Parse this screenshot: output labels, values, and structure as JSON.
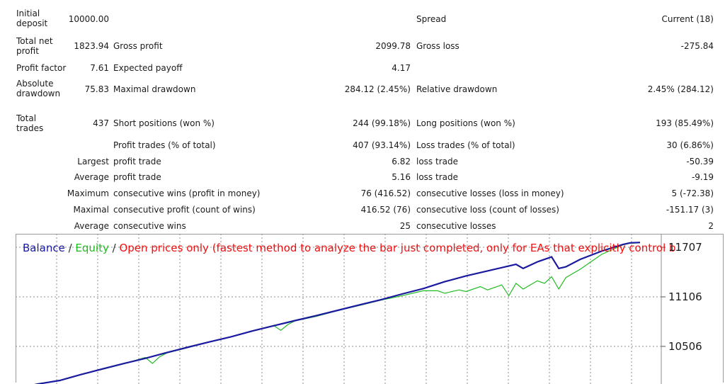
{
  "report": {
    "initial_deposit": {
      "label": "Initial deposit",
      "value": "10000.00"
    },
    "spread": {
      "label": "Spread",
      "value": "Current (18)"
    },
    "total_net_profit": {
      "label": "Total net profit",
      "value": "1823.94"
    },
    "gross_profit": {
      "label": "Gross profit",
      "value": "2099.78"
    },
    "gross_loss": {
      "label": "Gross loss",
      "value": "-275.84"
    },
    "profit_factor": {
      "label": "Profit factor",
      "value": "7.61"
    },
    "expected_payoff": {
      "label": "Expected payoff",
      "value": "4.17"
    },
    "absolute_drawdown": {
      "label": "Absolute drawdown",
      "value": "75.83"
    },
    "maximal_drawdown": {
      "label": "Maximal drawdown",
      "value": "284.12 (2.45%)"
    },
    "relative_drawdown": {
      "label": "Relative drawdown",
      "value": "2.45% (284.12)"
    },
    "total_trades": {
      "label": "Total trades",
      "value": "437"
    },
    "short_positions": {
      "label": "Short positions (won %)",
      "value": "244 (99.18%)"
    },
    "long_positions": {
      "label": "Long positions (won %)",
      "value": "193 (85.49%)"
    },
    "profit_trades": {
      "label": "Profit trades (% of total)",
      "value": "407 (93.14%)"
    },
    "loss_trades": {
      "label": "Loss trades (% of total)",
      "value": "30 (6.86%)"
    },
    "largest": {
      "prefix": "Largest",
      "profit_label": "profit trade",
      "profit_value": "6.82",
      "loss_label": "loss trade",
      "loss_value": "-50.39"
    },
    "average": {
      "prefix": "Average",
      "profit_label": "profit trade",
      "profit_value": "5.16",
      "loss_label": "loss trade",
      "loss_value": "-9.19"
    },
    "maximum": {
      "prefix": "Maximum",
      "profit_label": "consecutive wins (profit in money)",
      "profit_value": "76 (416.52)",
      "loss_label": "consecutive losses (loss in money)",
      "loss_value": "5 (-72.38)"
    },
    "maximal": {
      "prefix": "Maximal",
      "profit_label": "consecutive profit (count of wins)",
      "profit_value": "416.52 (76)",
      "loss_label": "consecutive loss (count of losses)",
      "loss_value": "-151.17 (3)"
    },
    "average2": {
      "prefix": "Average",
      "profit_label": "consecutive wins",
      "profit_value": "25",
      "loss_label": "consecutive losses",
      "loss_value": "2"
    }
  },
  "chart_legend": {
    "balance": "Balance",
    "sep1": " / ",
    "equity": "Equity",
    "sep2": " / ",
    "mode": "Open prices only (fastest method to analyze the bar just completed, only for EAs that explicitly control b"
  },
  "colors": {
    "balance": "#1a1aa0",
    "equity": "#22bb22",
    "mode": "#ee1111",
    "grid": "#8c8c8c"
  },
  "chart_data": {
    "type": "line",
    "title": "",
    "yticks": [
      11707,
      11106,
      10506
    ],
    "ylim": [
      10050,
      11870
    ],
    "xlim": [
      0,
      437
    ],
    "grid": true,
    "series": [
      {
        "name": "Balance",
        "color": "#1a1aa0",
        "x": [
          0,
          15,
          30,
          45,
          60,
          75,
          90,
          105,
          120,
          135,
          150,
          165,
          180,
          195,
          210,
          225,
          240,
          255,
          270,
          285,
          300,
          315,
          330,
          345,
          350,
          355,
          365,
          375,
          380,
          385,
          395,
          410,
          425,
          430,
          437
        ],
        "y": [
          10000,
          10051,
          10093,
          10165,
          10233,
          10298,
          10361,
          10430,
          10496,
          10560,
          10622,
          10692,
          10756,
          10818,
          10879,
          10943,
          11008,
          11070,
          11140,
          11206,
          11290,
          11360,
          11420,
          11480,
          11500,
          11450,
          11530,
          11590,
          11450,
          11470,
          11560,
          11660,
          11740,
          11760,
          11765
        ]
      },
      {
        "name": "Equity",
        "color": "#22bb22",
        "x": [
          0,
          15,
          30,
          45,
          60,
          75,
          90,
          95,
          100,
          105,
          120,
          135,
          150,
          165,
          180,
          185,
          190,
          195,
          210,
          225,
          240,
          255,
          270,
          285,
          295,
          300,
          310,
          315,
          325,
          330,
          340,
          345,
          350,
          355,
          365,
          370,
          375,
          380,
          385,
          395,
          410,
          425,
          430,
          437
        ],
        "y": [
          9995,
          10055,
          10090,
          10165,
          10228,
          10295,
          10372,
          10300,
          10380,
          10425,
          10490,
          10560,
          10620,
          10690,
          10760,
          10700,
          10770,
          10815,
          10870,
          10940,
          11000,
          11065,
          11120,
          11180,
          11180,
          11150,
          11190,
          11170,
          11230,
          11190,
          11250,
          11120,
          11270,
          11200,
          11300,
          11270,
          11350,
          11200,
          11340,
          11440,
          11620,
          11735,
          11755,
          11760
        ]
      }
    ]
  }
}
